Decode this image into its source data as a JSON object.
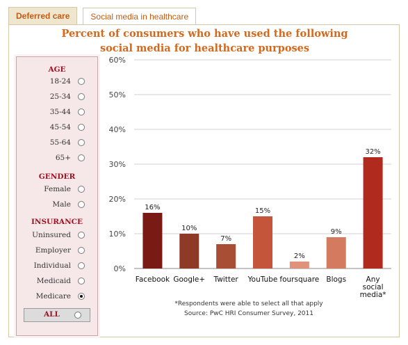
{
  "tabs": [
    {
      "label": "Deferred care",
      "active": false
    },
    {
      "label": "Social media in healthcare",
      "active": true
    }
  ],
  "title_line1": "Percent of consumers who have used the following",
  "title_line2": "social media for healthcare purposes",
  "filters": {
    "age": {
      "heading": "AGE",
      "options": [
        {
          "label": "18-24",
          "checked": false
        },
        {
          "label": "25-34",
          "checked": false
        },
        {
          "label": "35-44",
          "checked": false
        },
        {
          "label": "45-54",
          "checked": false
        },
        {
          "label": "55-64",
          "checked": false
        },
        {
          "label": "65+",
          "checked": false
        }
      ]
    },
    "gender": {
      "heading": "GENDER",
      "options": [
        {
          "label": "Female",
          "checked": false
        },
        {
          "label": "Male",
          "checked": false
        }
      ]
    },
    "insurance": {
      "heading": "INSURANCE",
      "options": [
        {
          "label": "Uninsured",
          "checked": false
        },
        {
          "label": "Employer",
          "checked": false
        },
        {
          "label": "Individual",
          "checked": false
        },
        {
          "label": "Medicaid",
          "checked": false
        },
        {
          "label": "Medicare",
          "checked": true
        }
      ]
    },
    "all_label": "ALL"
  },
  "chart_data": {
    "type": "bar",
    "categories": [
      "Facebook",
      "Google+",
      "Twitter",
      "YouTube",
      "foursquare",
      "Blogs",
      "Any social media*"
    ],
    "category_lines": [
      [
        "Facebook"
      ],
      [
        "Google+"
      ],
      [
        "Twitter"
      ],
      [
        "YouTube"
      ],
      [
        "foursquare"
      ],
      [
        "Blogs"
      ],
      [
        "Any",
        "social",
        "media*"
      ]
    ],
    "values": [
      16,
      10,
      7,
      15,
      2,
      9,
      32
    ],
    "value_labels": [
      "16%",
      "10%",
      "7%",
      "15%",
      "2%",
      "9%",
      "32%"
    ],
    "colors": [
      "#7a1a14",
      "#8f3a26",
      "#a84e34",
      "#c4553a",
      "#e0937a",
      "#d47a5e",
      "#b02a1e"
    ],
    "yticks": [
      0,
      10,
      20,
      30,
      40,
      50,
      60
    ],
    "ytick_labels": [
      "0%",
      "10%",
      "20%",
      "30%",
      "40%",
      "50%",
      "60%"
    ],
    "ylim": [
      0,
      60
    ],
    "grid": true,
    "xlabel": "",
    "ylabel": ""
  },
  "footnote_line1": "*Respondents were able to select all that apply",
  "footnote_line2": "Source: PwC HRI Consumer Survey, 2011"
}
